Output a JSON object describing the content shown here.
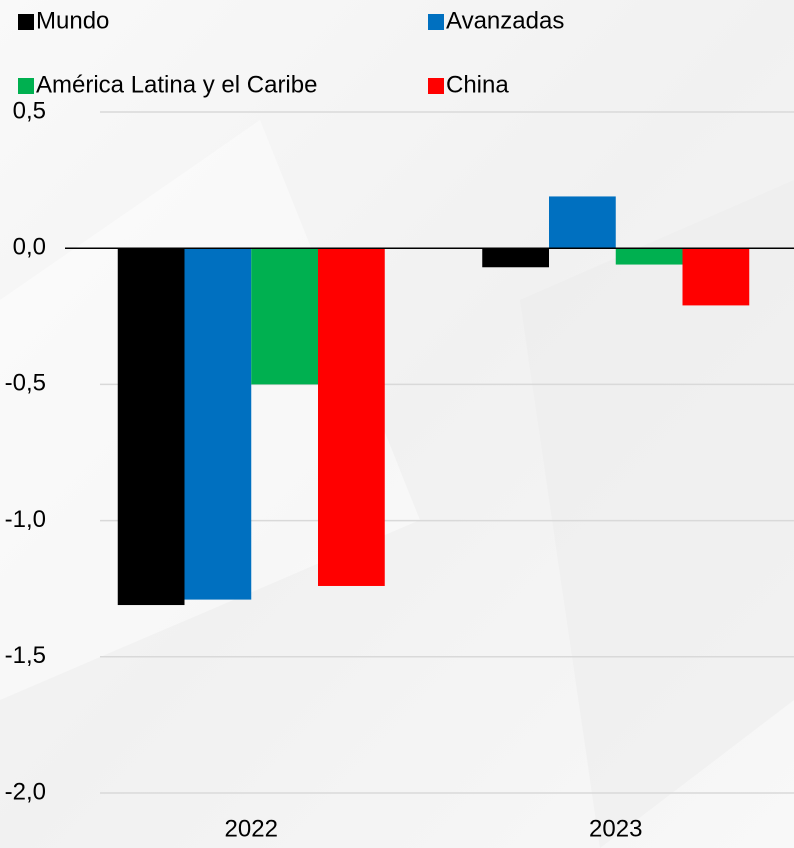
{
  "chart_data": {
    "type": "bar",
    "categories": [
      "2022",
      "2023"
    ],
    "series": [
      {
        "name": "Mundo",
        "color": "#000000",
        "values": [
          -1.31,
          -0.07
        ]
      },
      {
        "name": "Avanzadas",
        "color": "#0070c0",
        "values": [
          -1.29,
          0.19
        ]
      },
      {
        "name": "América Latina y el Caribe",
        "color": "#00b050",
        "values": [
          -0.5,
          -0.06
        ]
      },
      {
        "name": "China",
        "color": "#ff0000",
        "values": [
          -1.24,
          -0.21
        ]
      }
    ],
    "ylim": [
      -2.0,
      0.5
    ],
    "yticks": [
      {
        "value": 0.5,
        "label": "0,5"
      },
      {
        "value": 0.0,
        "label": "0,0"
      },
      {
        "value": -0.5,
        "label": "-0,5"
      },
      {
        "value": -1.0,
        "label": "-1,0"
      },
      {
        "value": -1.5,
        "label": "-1,5"
      },
      {
        "value": -2.0,
        "label": "-2,0"
      }
    ],
    "grid": true,
    "legend": "top"
  }
}
